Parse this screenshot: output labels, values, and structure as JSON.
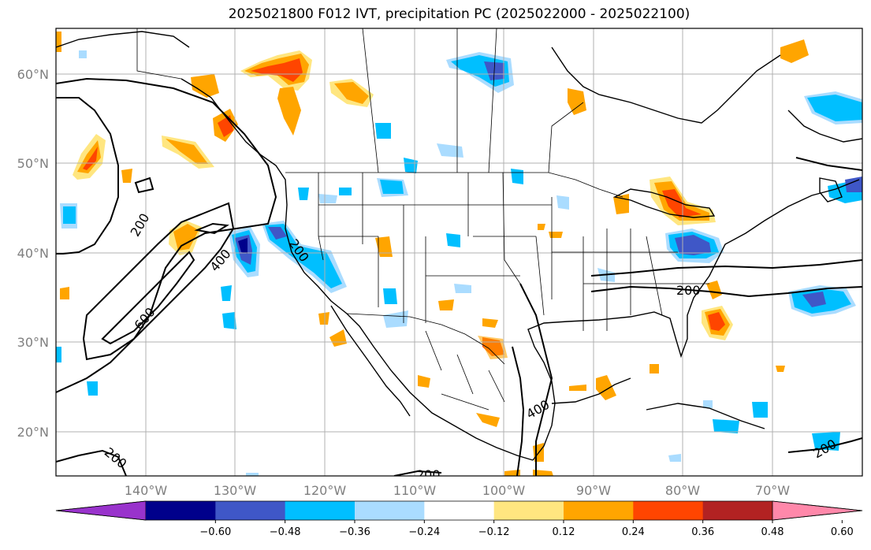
{
  "title": "2025021800 F012 IVT, precipitation PC (2025022000 - 2025022100)",
  "lat_labels": [
    "60°N",
    "50°N",
    "40°N",
    "30°N",
    "20°N"
  ],
  "lon_labels": [
    "140°W",
    "130°W",
    "120°W",
    "110°W",
    "100°W",
    "90°W",
    "80°W",
    "70°W"
  ],
  "contour_labels": [
    "200",
    "200",
    "400",
    "600",
    "200",
    "400",
    "200",
    "200",
    "200"
  ],
  "colorbar": {
    "ticks": [
      "−0.60",
      "−0.48",
      "−0.36",
      "−0.24",
      "−0.12",
      "0.12",
      "0.24",
      "0.36",
      "0.48",
      "0.60"
    ],
    "colors": [
      "#9933cc",
      "#00008b",
      "#3f57c7",
      "#00bfff",
      "#aadcff",
      "#ffffff",
      "#ffe680",
      "#ffa500",
      "#ff4500",
      "#b22222",
      "#ff88aa"
    ]
  },
  "colors": {
    "neg_light": "#aadcff",
    "neg_mid": "#00bfff",
    "neg_dark": "#3f57c7",
    "neg_darkest": "#00008b",
    "pos_light": "#ffe680",
    "pos_mid": "#ffa500",
    "pos_dark": "#ff4500"
  }
}
